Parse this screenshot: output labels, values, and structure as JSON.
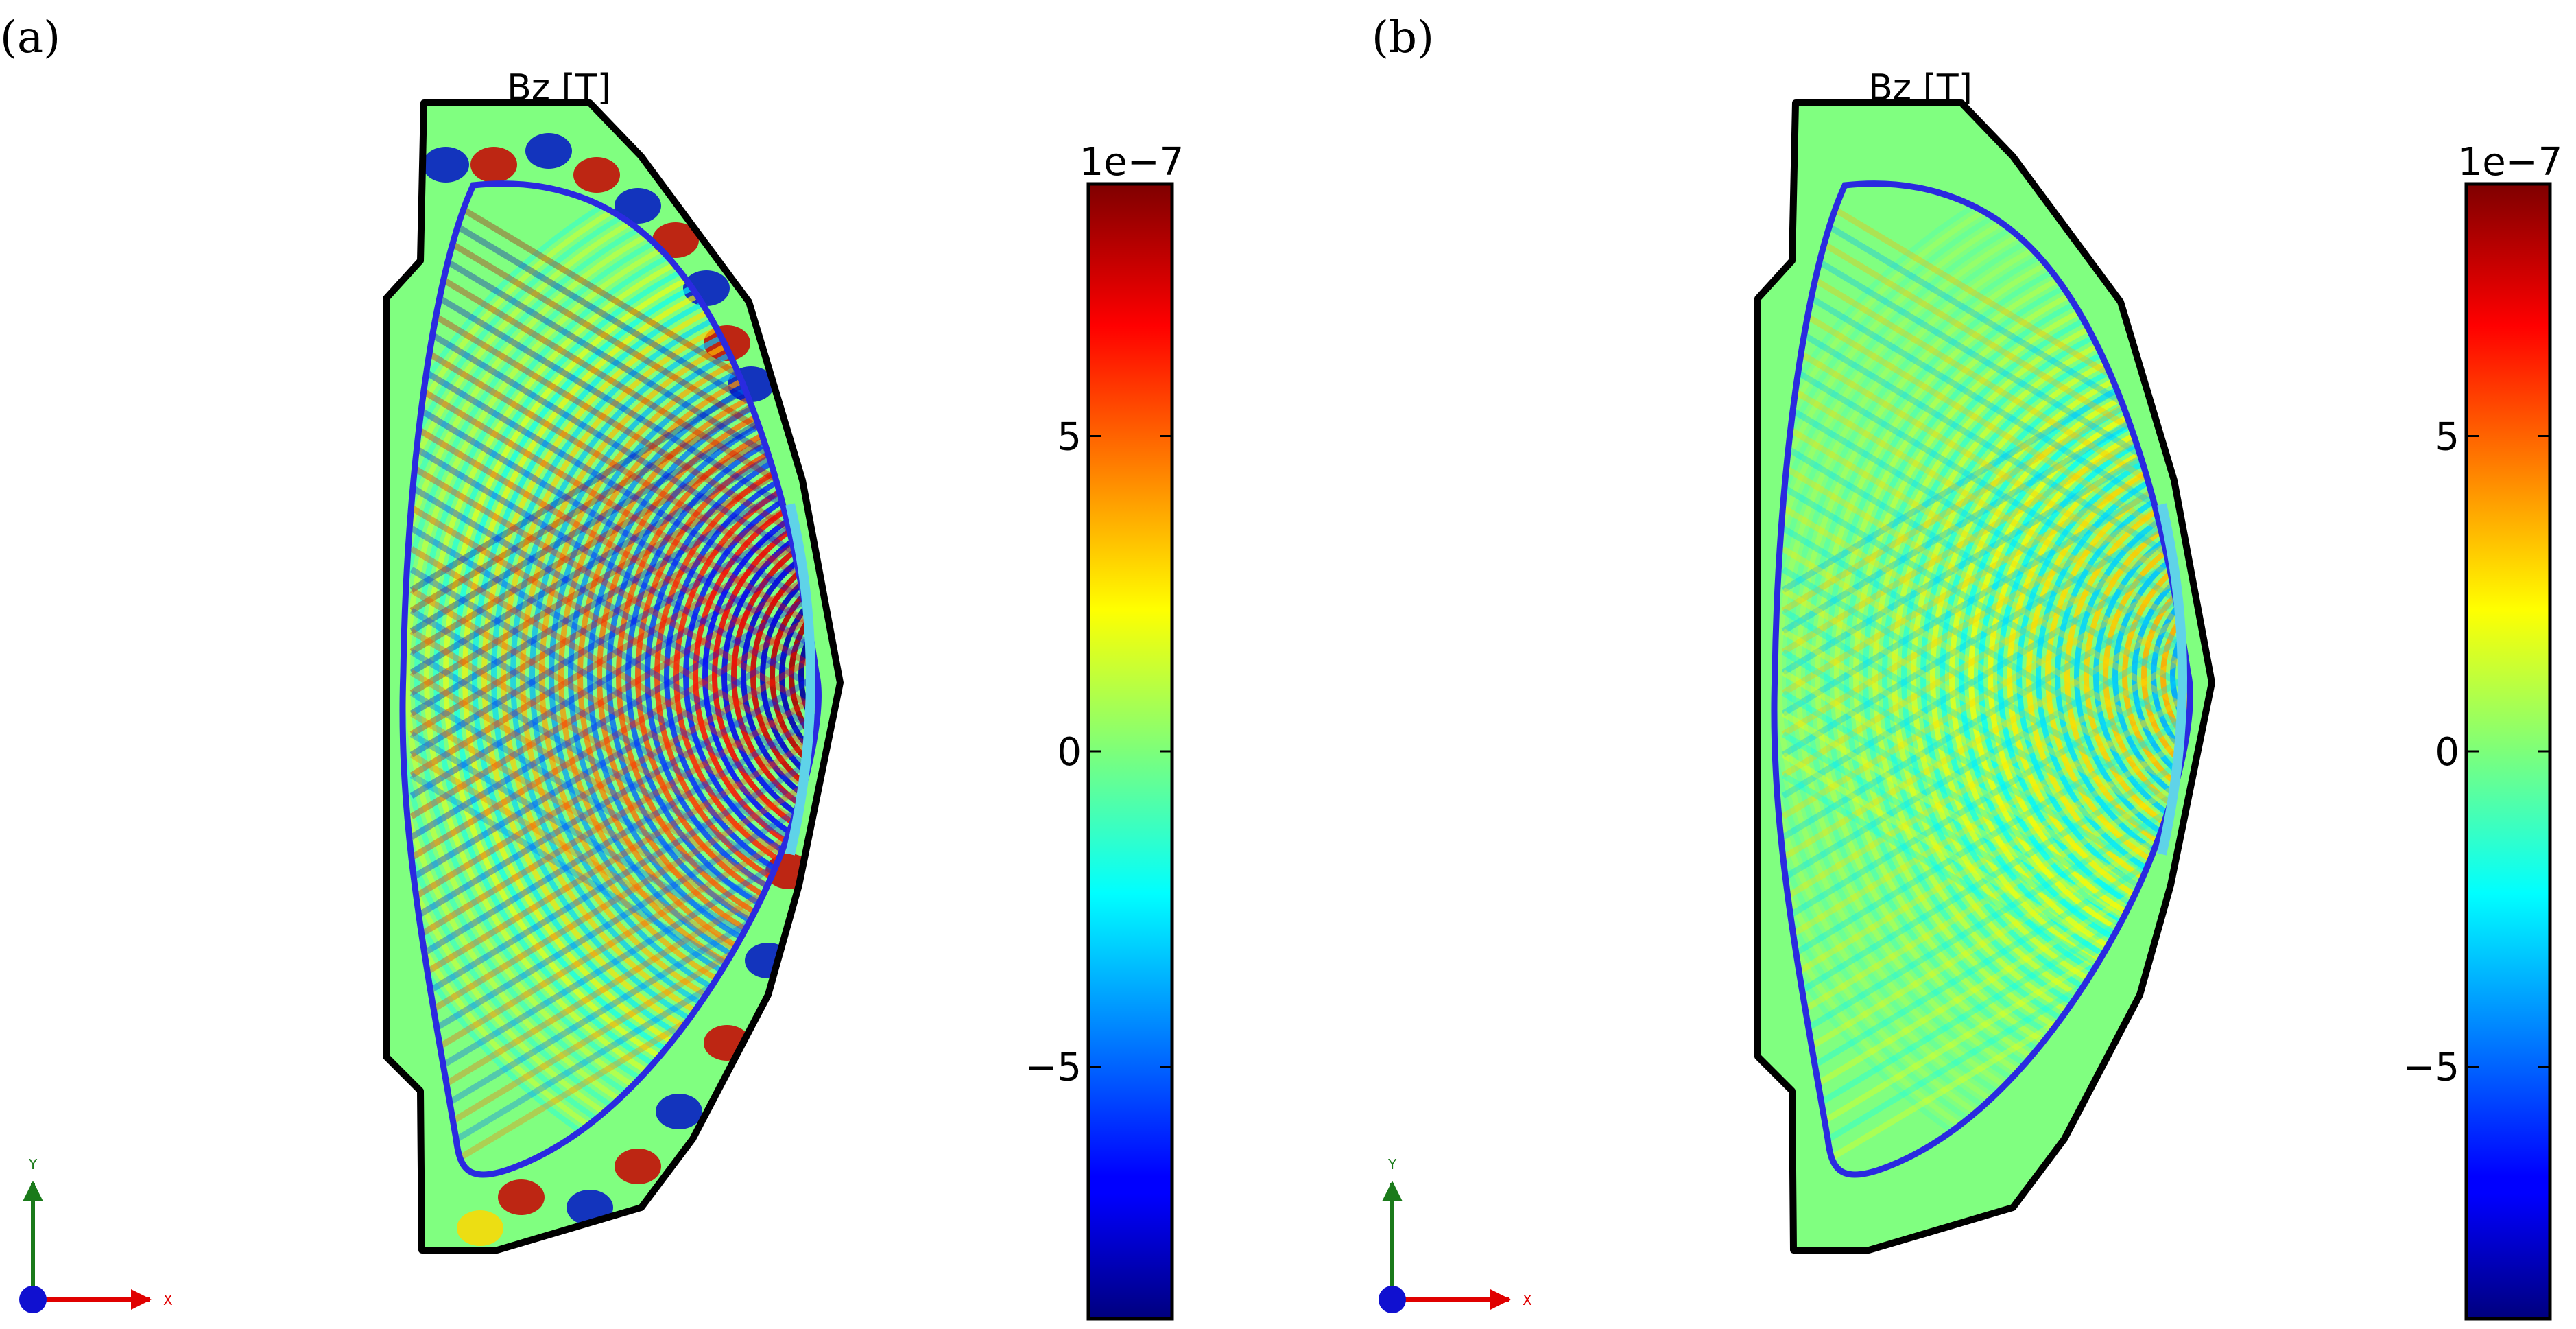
{
  "chart_data": [
    {
      "type": "heatmap",
      "panel_label": "(a)",
      "title": "Bz [T]",
      "colorbar": {
        "colormap": "jet",
        "multiplier": "1e−7",
        "range": [
          -9,
          9
        ],
        "ticks": [
          {
            "value": 5,
            "label": "5"
          },
          {
            "value": 0,
            "label": "0"
          },
          {
            "value": -5,
            "label": "−5"
          }
        ]
      },
      "field": {
        "amplitude": 1.0,
        "core_waves": true,
        "edge_eddies": true
      },
      "axes_triad": {
        "x_label": "X",
        "y_label": "Y"
      }
    },
    {
      "type": "heatmap",
      "panel_label": "(b)",
      "title": "Bz [T]",
      "colorbar": {
        "colormap": "jet",
        "multiplier": "1e−7",
        "range": [
          -9,
          9
        ],
        "ticks": [
          {
            "value": 5,
            "label": "5"
          },
          {
            "value": 0,
            "label": "0"
          },
          {
            "value": -5,
            "label": "−5"
          }
        ]
      },
      "field": {
        "amplitude": 0.45,
        "core_waves": true,
        "edge_eddies": false
      },
      "axes_triad": {
        "x_label": "X",
        "y_label": "Y"
      }
    }
  ],
  "colors": {
    "background": "#ffffff",
    "wall_outline": "#000000",
    "separatrix": "#2a2ae0",
    "antenna": "#5fd3e8",
    "triad_x": "#e00000",
    "triad_y": "#1a7a1a",
    "triad_origin": "#1010d0"
  }
}
